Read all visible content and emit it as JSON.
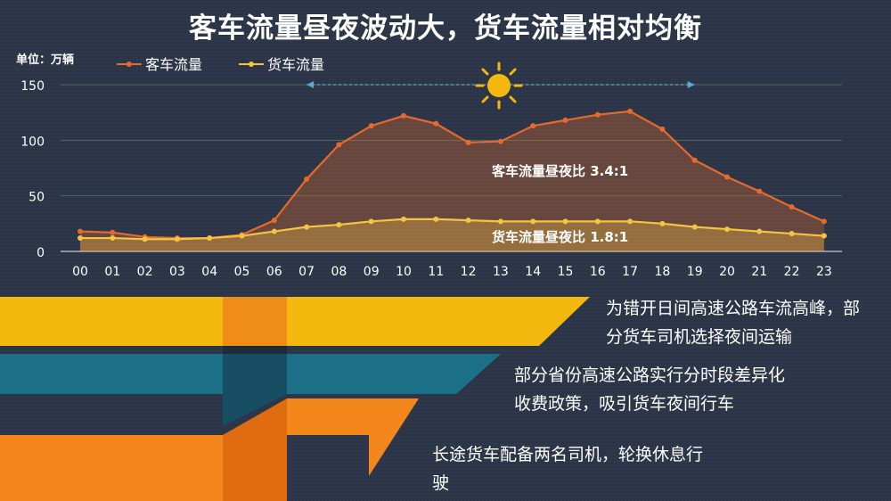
{
  "title": "客车流量昼夜波动大，货车流量相对均衡",
  "unit_label": "单位：万辆",
  "chart_data": {
    "type": "area",
    "title": "客车流量昼夜波动大，货车流量相对均衡",
    "ylabel": "单位：万辆",
    "ylim": [
      0,
      150
    ],
    "y_ticks": [
      0,
      50,
      100,
      150
    ],
    "grid": true,
    "legend_position": "top-left",
    "categories": [
      "00",
      "01",
      "02",
      "03",
      "04",
      "05",
      "06",
      "07",
      "08",
      "09",
      "10",
      "11",
      "12",
      "13",
      "14",
      "15",
      "16",
      "17",
      "18",
      "19",
      "20",
      "21",
      "22",
      "23"
    ],
    "series": [
      {
        "name": "客车流量",
        "color": "#e56a2c",
        "values": [
          18,
          17,
          13,
          12,
          12,
          15,
          28,
          65,
          96,
          113,
          122,
          115,
          98,
          99,
          113,
          118,
          123,
          126,
          110,
          82,
          67,
          54,
          40,
          27
        ]
      },
      {
        "name": "货车流量",
        "color": "#f5c542",
        "values": [
          12,
          12,
          11,
          11,
          12,
          14,
          18,
          22,
          24,
          27,
          29,
          29,
          28,
          27,
          27,
          27,
          27,
          27,
          25,
          22,
          20,
          18,
          16,
          14
        ]
      }
    ],
    "annotations": [
      {
        "text": "客车流量昼夜比 3.4:1"
      },
      {
        "text": "货车流量昼夜比 1.8:1"
      }
    ],
    "daytime_span": [
      "07",
      "19"
    ]
  },
  "notes": [
    "为错开日间高速公路车流高峰，部分货车司机选择夜间运输",
    "部分省份高速公路实行分时段差异化收费政策，吸引货车夜间行车",
    "长途货车配备两名司机，轮换休息行驶"
  ],
  "colors": {
    "background": "#2c3547",
    "band1": "#f5b80f",
    "band2": "#1b6f86",
    "band3": "#f3871b"
  },
  "icons": {
    "sun": "sun-icon"
  }
}
